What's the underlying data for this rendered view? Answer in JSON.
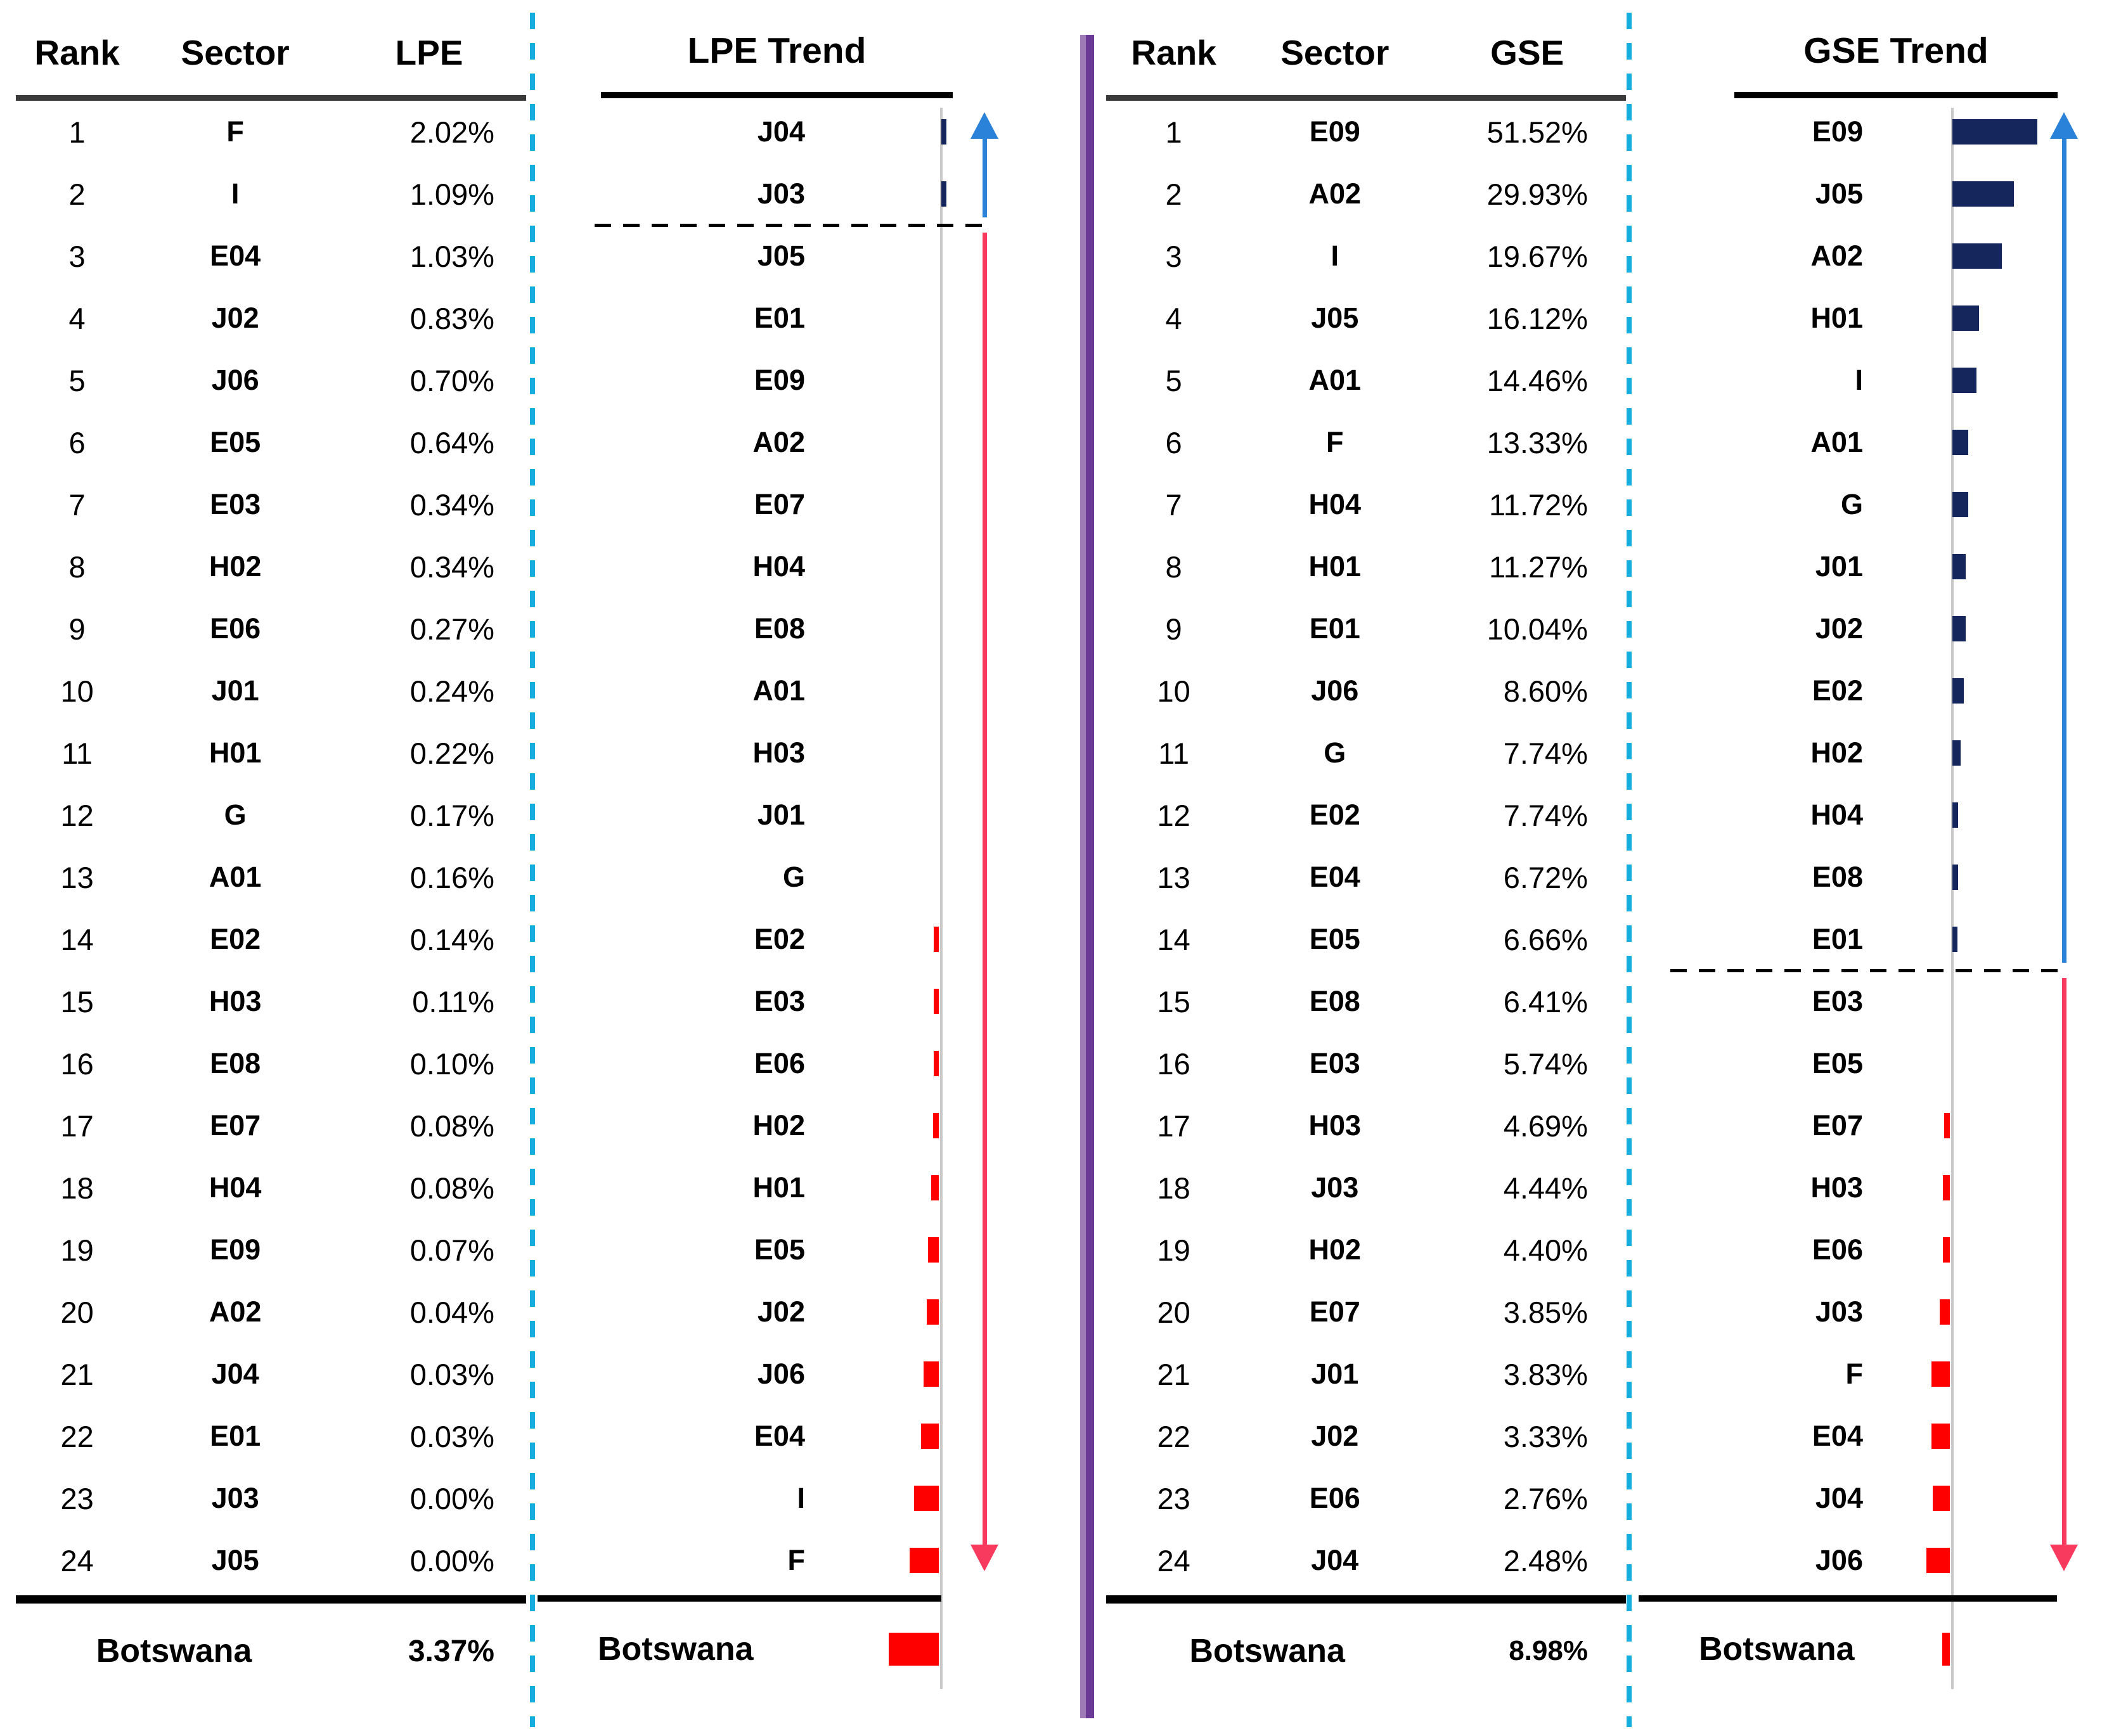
{
  "colors": {
    "navy": "#14265c",
    "red": "#ff0000",
    "blue_arrow": "#2b82d9",
    "red_arrow": "#f83a5e",
    "cyan_dash": "#15aede",
    "purple_light": "#9e7bb5",
    "purple_dark": "#6a3a96",
    "axis_gray": "#c9c9c9",
    "rule_gray": "#3a3a3a"
  },
  "lpe_table": {
    "headers": [
      "Rank",
      "Sector",
      "LPE"
    ],
    "rows": [
      {
        "rank": "1",
        "sector": "F",
        "value": "2.02%"
      },
      {
        "rank": "2",
        "sector": "I",
        "value": "1.09%"
      },
      {
        "rank": "3",
        "sector": "E04",
        "value": "1.03%"
      },
      {
        "rank": "4",
        "sector": "J02",
        "value": "0.83%"
      },
      {
        "rank": "5",
        "sector": "J06",
        "value": "0.70%"
      },
      {
        "rank": "6",
        "sector": "E05",
        "value": "0.64%"
      },
      {
        "rank": "7",
        "sector": "E03",
        "value": "0.34%"
      },
      {
        "rank": "8",
        "sector": "H02",
        "value": "0.34%"
      },
      {
        "rank": "9",
        "sector": "E06",
        "value": "0.27%"
      },
      {
        "rank": "10",
        "sector": "J01",
        "value": "0.24%"
      },
      {
        "rank": "11",
        "sector": "H01",
        "value": "0.22%"
      },
      {
        "rank": "12",
        "sector": "G",
        "value": "0.17%"
      },
      {
        "rank": "13",
        "sector": "A01",
        "value": "0.16%"
      },
      {
        "rank": "14",
        "sector": "E02",
        "value": "0.14%"
      },
      {
        "rank": "15",
        "sector": "H03",
        "value": "0.11%"
      },
      {
        "rank": "16",
        "sector": "E08",
        "value": "0.10%"
      },
      {
        "rank": "17",
        "sector": "E07",
        "value": "0.08%"
      },
      {
        "rank": "18",
        "sector": "H04",
        "value": "0.08%"
      },
      {
        "rank": "19",
        "sector": "E09",
        "value": "0.07%"
      },
      {
        "rank": "20",
        "sector": "A02",
        "value": "0.04%"
      },
      {
        "rank": "21",
        "sector": "J04",
        "value": "0.03%"
      },
      {
        "rank": "22",
        "sector": "E01",
        "value": "0.03%"
      },
      {
        "rank": "23",
        "sector": "J03",
        "value": "0.00%"
      },
      {
        "rank": "24",
        "sector": "J05",
        "value": "0.00%"
      }
    ],
    "footer": {
      "label": "Botswana",
      "value": "3.37%"
    }
  },
  "lpe_trend": {
    "title": "LPE Trend",
    "divider_after": 2,
    "rows": [
      {
        "sector": "J04",
        "dir": "up",
        "len": 8
      },
      {
        "sector": "J03",
        "dir": "up",
        "len": 8
      },
      {
        "sector": "J05",
        "dir": "none",
        "len": 0
      },
      {
        "sector": "E01",
        "dir": "none",
        "len": 0
      },
      {
        "sector": "E09",
        "dir": "none",
        "len": 0
      },
      {
        "sector": "A02",
        "dir": "none",
        "len": 0
      },
      {
        "sector": "E07",
        "dir": "none",
        "len": 0
      },
      {
        "sector": "H04",
        "dir": "none",
        "len": 0
      },
      {
        "sector": "E08",
        "dir": "none",
        "len": 0
      },
      {
        "sector": "A01",
        "dir": "none",
        "len": 0
      },
      {
        "sector": "H03",
        "dir": "none",
        "len": 0
      },
      {
        "sector": "J01",
        "dir": "none",
        "len": 0
      },
      {
        "sector": "G",
        "dir": "none",
        "len": 0
      },
      {
        "sector": "E02",
        "dir": "down",
        "len": 8
      },
      {
        "sector": "E03",
        "dir": "down",
        "len": 8
      },
      {
        "sector": "E06",
        "dir": "down",
        "len": 8
      },
      {
        "sector": "H02",
        "dir": "down",
        "len": 9
      },
      {
        "sector": "H01",
        "dir": "down",
        "len": 12
      },
      {
        "sector": "E05",
        "dir": "down",
        "len": 17
      },
      {
        "sector": "J02",
        "dir": "down",
        "len": 19
      },
      {
        "sector": "J06",
        "dir": "down",
        "len": 24
      },
      {
        "sector": "E04",
        "dir": "down",
        "len": 28
      },
      {
        "sector": "I",
        "dir": "down",
        "len": 39
      },
      {
        "sector": "F",
        "dir": "down",
        "len": 46
      }
    ],
    "footer": {
      "label": "Botswana",
      "dir": "down",
      "len": 79
    }
  },
  "gse_table": {
    "headers": [
      "Rank",
      "Sector",
      "GSE"
    ],
    "rows": [
      {
        "rank": "1",
        "sector": "E09",
        "value": "51.52%"
      },
      {
        "rank": "2",
        "sector": "A02",
        "value": "29.93%"
      },
      {
        "rank": "3",
        "sector": "I",
        "value": "19.67%"
      },
      {
        "rank": "4",
        "sector": "J05",
        "value": "16.12%"
      },
      {
        "rank": "5",
        "sector": "A01",
        "value": "14.46%"
      },
      {
        "rank": "6",
        "sector": "F",
        "value": "13.33%"
      },
      {
        "rank": "7",
        "sector": "H04",
        "value": "11.72%"
      },
      {
        "rank": "8",
        "sector": "H01",
        "value": "11.27%"
      },
      {
        "rank": "9",
        "sector": "E01",
        "value": "10.04%"
      },
      {
        "rank": "10",
        "sector": "J06",
        "value": "8.60%"
      },
      {
        "rank": "11",
        "sector": "G",
        "value": "7.74%"
      },
      {
        "rank": "12",
        "sector": "E02",
        "value": "7.74%"
      },
      {
        "rank": "13",
        "sector": "E04",
        "value": "6.72%"
      },
      {
        "rank": "14",
        "sector": "E05",
        "value": "6.66%"
      },
      {
        "rank": "15",
        "sector": "E08",
        "value": "6.41%"
      },
      {
        "rank": "16",
        "sector": "E03",
        "value": "5.74%"
      },
      {
        "rank": "17",
        "sector": "H03",
        "value": "4.69%"
      },
      {
        "rank": "18",
        "sector": "J03",
        "value": "4.44%"
      },
      {
        "rank": "19",
        "sector": "H02",
        "value": "4.40%"
      },
      {
        "rank": "20",
        "sector": "E07",
        "value": "3.85%"
      },
      {
        "rank": "21",
        "sector": "J01",
        "value": "3.83%"
      },
      {
        "rank": "22",
        "sector": "J02",
        "value": "3.33%"
      },
      {
        "rank": "23",
        "sector": "E06",
        "value": "2.76%"
      },
      {
        "rank": "24",
        "sector": "J04",
        "value": "2.48%"
      }
    ],
    "footer": {
      "label": "Botswana",
      "value": "8.98%"
    }
  },
  "gse_trend": {
    "title": "GSE Trend",
    "divider_after": 14,
    "rows": [
      {
        "sector": "E09",
        "dir": "up",
        "len": 134
      },
      {
        "sector": "J05",
        "dir": "up",
        "len": 97
      },
      {
        "sector": "A02",
        "dir": "up",
        "len": 78
      },
      {
        "sector": "H01",
        "dir": "up",
        "len": 42
      },
      {
        "sector": "I",
        "dir": "up",
        "len": 38
      },
      {
        "sector": "A01",
        "dir": "up",
        "len": 25
      },
      {
        "sector": "G",
        "dir": "up",
        "len": 25
      },
      {
        "sector": "J01",
        "dir": "up",
        "len": 21
      },
      {
        "sector": "J02",
        "dir": "up",
        "len": 21
      },
      {
        "sector": "E02",
        "dir": "up",
        "len": 18
      },
      {
        "sector": "H02",
        "dir": "up",
        "len": 13
      },
      {
        "sector": "H04",
        "dir": "up",
        "len": 9
      },
      {
        "sector": "E08",
        "dir": "up",
        "len": 9
      },
      {
        "sector": "E01",
        "dir": "up",
        "len": 8
      },
      {
        "sector": "E03",
        "dir": "none",
        "len": 0
      },
      {
        "sector": "E05",
        "dir": "none",
        "len": 0
      },
      {
        "sector": "E07",
        "dir": "down",
        "len": 9
      },
      {
        "sector": "H03",
        "dir": "down",
        "len": 11
      },
      {
        "sector": "E06",
        "dir": "down",
        "len": 11
      },
      {
        "sector": "J03",
        "dir": "down",
        "len": 16
      },
      {
        "sector": "F",
        "dir": "down",
        "len": 29
      },
      {
        "sector": "E04",
        "dir": "down",
        "len": 29
      },
      {
        "sector": "J04",
        "dir": "down",
        "len": 27
      },
      {
        "sector": "J06",
        "dir": "down",
        "len": 37
      }
    ],
    "footer": {
      "label": "Botswana",
      "dir": "down",
      "len": 12
    }
  },
  "chart_data": [
    {
      "type": "table",
      "title": "LPE ranking by sector",
      "columns": [
        "Rank",
        "Sector",
        "LPE"
      ],
      "rows": [
        [
          "1",
          "F",
          "2.02%"
        ],
        [
          "2",
          "I",
          "1.09%"
        ],
        [
          "3",
          "E04",
          "1.03%"
        ],
        [
          "4",
          "J02",
          "0.83%"
        ],
        [
          "5",
          "J06",
          "0.70%"
        ],
        [
          "6",
          "E05",
          "0.64%"
        ],
        [
          "7",
          "E03",
          "0.34%"
        ],
        [
          "8",
          "H02",
          "0.34%"
        ],
        [
          "9",
          "E06",
          "0.27%"
        ],
        [
          "10",
          "J01",
          "0.24%"
        ],
        [
          "11",
          "H01",
          "0.22%"
        ],
        [
          "12",
          "G",
          "0.17%"
        ],
        [
          "13",
          "A01",
          "0.16%"
        ],
        [
          "14",
          "E02",
          "0.14%"
        ],
        [
          "15",
          "H03",
          "0.11%"
        ],
        [
          "16",
          "E08",
          "0.10%"
        ],
        [
          "17",
          "E07",
          "0.08%"
        ],
        [
          "18",
          "H04",
          "0.08%"
        ],
        [
          "19",
          "E09",
          "0.07%"
        ],
        [
          "20",
          "A02",
          "0.04%"
        ],
        [
          "21",
          "J04",
          "0.03%"
        ],
        [
          "22",
          "E01",
          "0.03%"
        ],
        [
          "23",
          "J03",
          "0.00%"
        ],
        [
          "24",
          "J05",
          "0.00%"
        ]
      ],
      "footer_row": [
        "Botswana",
        "3.37%"
      ]
    },
    {
      "type": "bar",
      "title": "LPE Trend",
      "orientation": "horizontal_diverging",
      "categories": [
        "J04",
        "J03",
        "J05",
        "E01",
        "E09",
        "A02",
        "E07",
        "H04",
        "E08",
        "A01",
        "H03",
        "J01",
        "G",
        "E02",
        "E03",
        "E06",
        "H02",
        "H01",
        "E05",
        "J02",
        "J06",
        "E04",
        "I",
        "F"
      ],
      "values": [
        8,
        8,
        0,
        0,
        0,
        0,
        0,
        0,
        0,
        0,
        0,
        0,
        0,
        -8,
        -8,
        -8,
        -9,
        -12,
        -17,
        -19,
        -24,
        -28,
        -39,
        -46
      ],
      "footer_category": "Botswana",
      "footer_value": -79,
      "units": "relative bar length in px; positive = up-trend (navy, right of axis), negative = down-trend (red, left of axis)",
      "grid": false,
      "legend_position": "none"
    },
    {
      "type": "table",
      "title": "GSE ranking by sector",
      "columns": [
        "Rank",
        "Sector",
        "GSE"
      ],
      "rows": [
        [
          "1",
          "E09",
          "51.52%"
        ],
        [
          "2",
          "A02",
          "29.93%"
        ],
        [
          "3",
          "I",
          "19.67%"
        ],
        [
          "4",
          "J05",
          "16.12%"
        ],
        [
          "5",
          "A01",
          "14.46%"
        ],
        [
          "6",
          "F",
          "13.33%"
        ],
        [
          "7",
          "H04",
          "11.72%"
        ],
        [
          "8",
          "H01",
          "11.27%"
        ],
        [
          "9",
          "E01",
          "10.04%"
        ],
        [
          "10",
          "J06",
          "8.60%"
        ],
        [
          "11",
          "G",
          "7.74%"
        ],
        [
          "12",
          "E02",
          "7.74%"
        ],
        [
          "13",
          "E04",
          "6.72%"
        ],
        [
          "14",
          "E05",
          "6.66%"
        ],
        [
          "15",
          "E08",
          "6.41%"
        ],
        [
          "16",
          "E03",
          "5.74%"
        ],
        [
          "17",
          "H03",
          "4.69%"
        ],
        [
          "18",
          "J03",
          "4.44%"
        ],
        [
          "19",
          "H02",
          "4.40%"
        ],
        [
          "20",
          "E07",
          "3.85%"
        ],
        [
          "21",
          "J01",
          "3.83%"
        ],
        [
          "22",
          "J02",
          "3.33%"
        ],
        [
          "23",
          "E06",
          "2.76%"
        ],
        [
          "24",
          "J04",
          "2.48%"
        ]
      ],
      "footer_row": [
        "Botswana",
        "8.98%"
      ]
    },
    {
      "type": "bar",
      "title": "GSE Trend",
      "orientation": "horizontal_diverging",
      "categories": [
        "E09",
        "J05",
        "A02",
        "H01",
        "I",
        "A01",
        "G",
        "J01",
        "J02",
        "E02",
        "H02",
        "H04",
        "E08",
        "E01",
        "E03",
        "E05",
        "E07",
        "H03",
        "E06",
        "J03",
        "F",
        "E04",
        "J04",
        "J06"
      ],
      "values": [
        134,
        97,
        78,
        42,
        38,
        25,
        25,
        21,
        21,
        18,
        13,
        9,
        9,
        8,
        0,
        0,
        -9,
        -11,
        -11,
        -16,
        -29,
        -29,
        -27,
        -37
      ],
      "footer_category": "Botswana",
      "footer_value": -12,
      "units": "relative bar length in px; positive = up-trend (navy, right of axis), negative = down-trend (red, left of axis)",
      "grid": false,
      "legend_position": "none"
    }
  ]
}
